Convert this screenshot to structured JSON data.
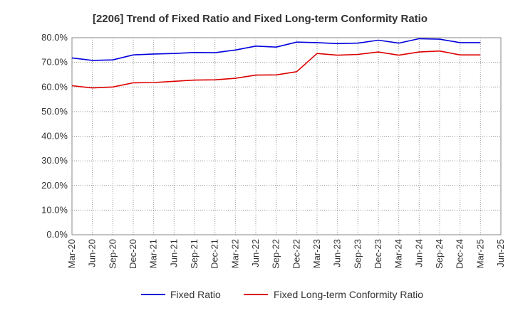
{
  "chart_data": {
    "type": "line",
    "title": "[2206]  Trend of Fixed Ratio and Fixed Long-term Conformity Ratio",
    "xlabel": "",
    "ylabel": "",
    "x": [
      "Mar-20",
      "Jun-20",
      "Sep-20",
      "Dec-20",
      "Mar-21",
      "Jun-21",
      "Sep-21",
      "Dec-21",
      "Mar-22",
      "Jun-22",
      "Sep-22",
      "Dec-22",
      "Mar-23",
      "Jun-23",
      "Sep-23",
      "Dec-23",
      "Mar-24",
      "Jun-24",
      "Sep-24",
      "Dec-24",
      "Mar-25",
      "Jun-25"
    ],
    "y_ticks": [
      "0.0%",
      "10.0%",
      "20.0%",
      "30.0%",
      "40.0%",
      "50.0%",
      "60.0%",
      "70.0%",
      "80.0%"
    ],
    "ylim": [
      0,
      80
    ],
    "grid": true,
    "legend_position": "bottom",
    "series": [
      {
        "name": "Fixed Ratio",
        "color": "#0000dd",
        "values": [
          71.8,
          70.8,
          71.0,
          73.0,
          73.4,
          73.6,
          74.0,
          73.9,
          75.0,
          76.6,
          76.2,
          78.2,
          78.0,
          77.6,
          77.8,
          79.0,
          77.8,
          79.6,
          79.4,
          78.0,
          78.0,
          null
        ]
      },
      {
        "name": "Fixed Long-term Conformity Ratio",
        "color": "#dd0000",
        "values": [
          60.5,
          59.6,
          60.0,
          61.7,
          61.8,
          62.3,
          62.8,
          62.9,
          63.5,
          64.8,
          64.9,
          66.2,
          73.6,
          72.9,
          73.2,
          74.2,
          72.9,
          74.2,
          74.6,
          73.0,
          73.0,
          null
        ]
      }
    ]
  }
}
